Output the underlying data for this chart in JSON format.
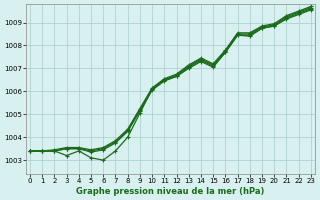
{
  "title": "Graphe pression niveau de la mer (hPa)",
  "bg_color": "#d8f0f0",
  "line_color": "#1a6b1a",
  "x_ticks": [
    0,
    1,
    2,
    3,
    4,
    5,
    6,
    7,
    8,
    9,
    10,
    11,
    12,
    13,
    14,
    15,
    16,
    17,
    18,
    19,
    20,
    21,
    22,
    23
  ],
  "y_ticks": [
    1003,
    1004,
    1005,
    1006,
    1007,
    1008,
    1009
  ],
  "ylim": [
    1002.4,
    1009.8
  ],
  "xlim": [
    -0.3,
    23.3
  ],
  "series_main1": [
    1003.4,
    1003.4,
    1003.4,
    1003.5,
    1003.5,
    1003.4,
    1003.5,
    1003.8,
    1004.3,
    1005.2,
    1006.1,
    1006.5,
    1006.7,
    1007.1,
    1007.4,
    1007.15,
    1007.75,
    1008.5,
    1008.5,
    1008.8,
    1008.9,
    1009.25,
    1009.45,
    1009.65
  ],
  "series_main2": [
    1003.4,
    1003.4,
    1003.4,
    1003.5,
    1003.5,
    1003.35,
    1003.45,
    1003.75,
    1004.25,
    1005.15,
    1006.05,
    1006.45,
    1006.65,
    1007.05,
    1007.35,
    1007.1,
    1007.7,
    1008.45,
    1008.45,
    1008.75,
    1008.85,
    1009.2,
    1009.4,
    1009.6
  ],
  "series_main3": [
    1003.4,
    1003.4,
    1003.45,
    1003.55,
    1003.55,
    1003.45,
    1003.55,
    1003.85,
    1004.35,
    1005.25,
    1006.15,
    1006.55,
    1006.75,
    1007.15,
    1007.45,
    1007.2,
    1007.8,
    1008.55,
    1008.55,
    1008.85,
    1008.95,
    1009.3,
    1009.5,
    1009.7
  ],
  "series_dip": [
    1003.4,
    1003.4,
    1003.4,
    1003.2,
    1003.4,
    1003.1,
    1003.0,
    1003.4,
    1004.0,
    1005.05,
    1006.1,
    1006.5,
    1006.65,
    1007.0,
    1007.3,
    1007.05,
    1007.7,
    1008.45,
    1008.4,
    1008.75,
    1008.85,
    1009.15,
    1009.35,
    1009.55
  ]
}
